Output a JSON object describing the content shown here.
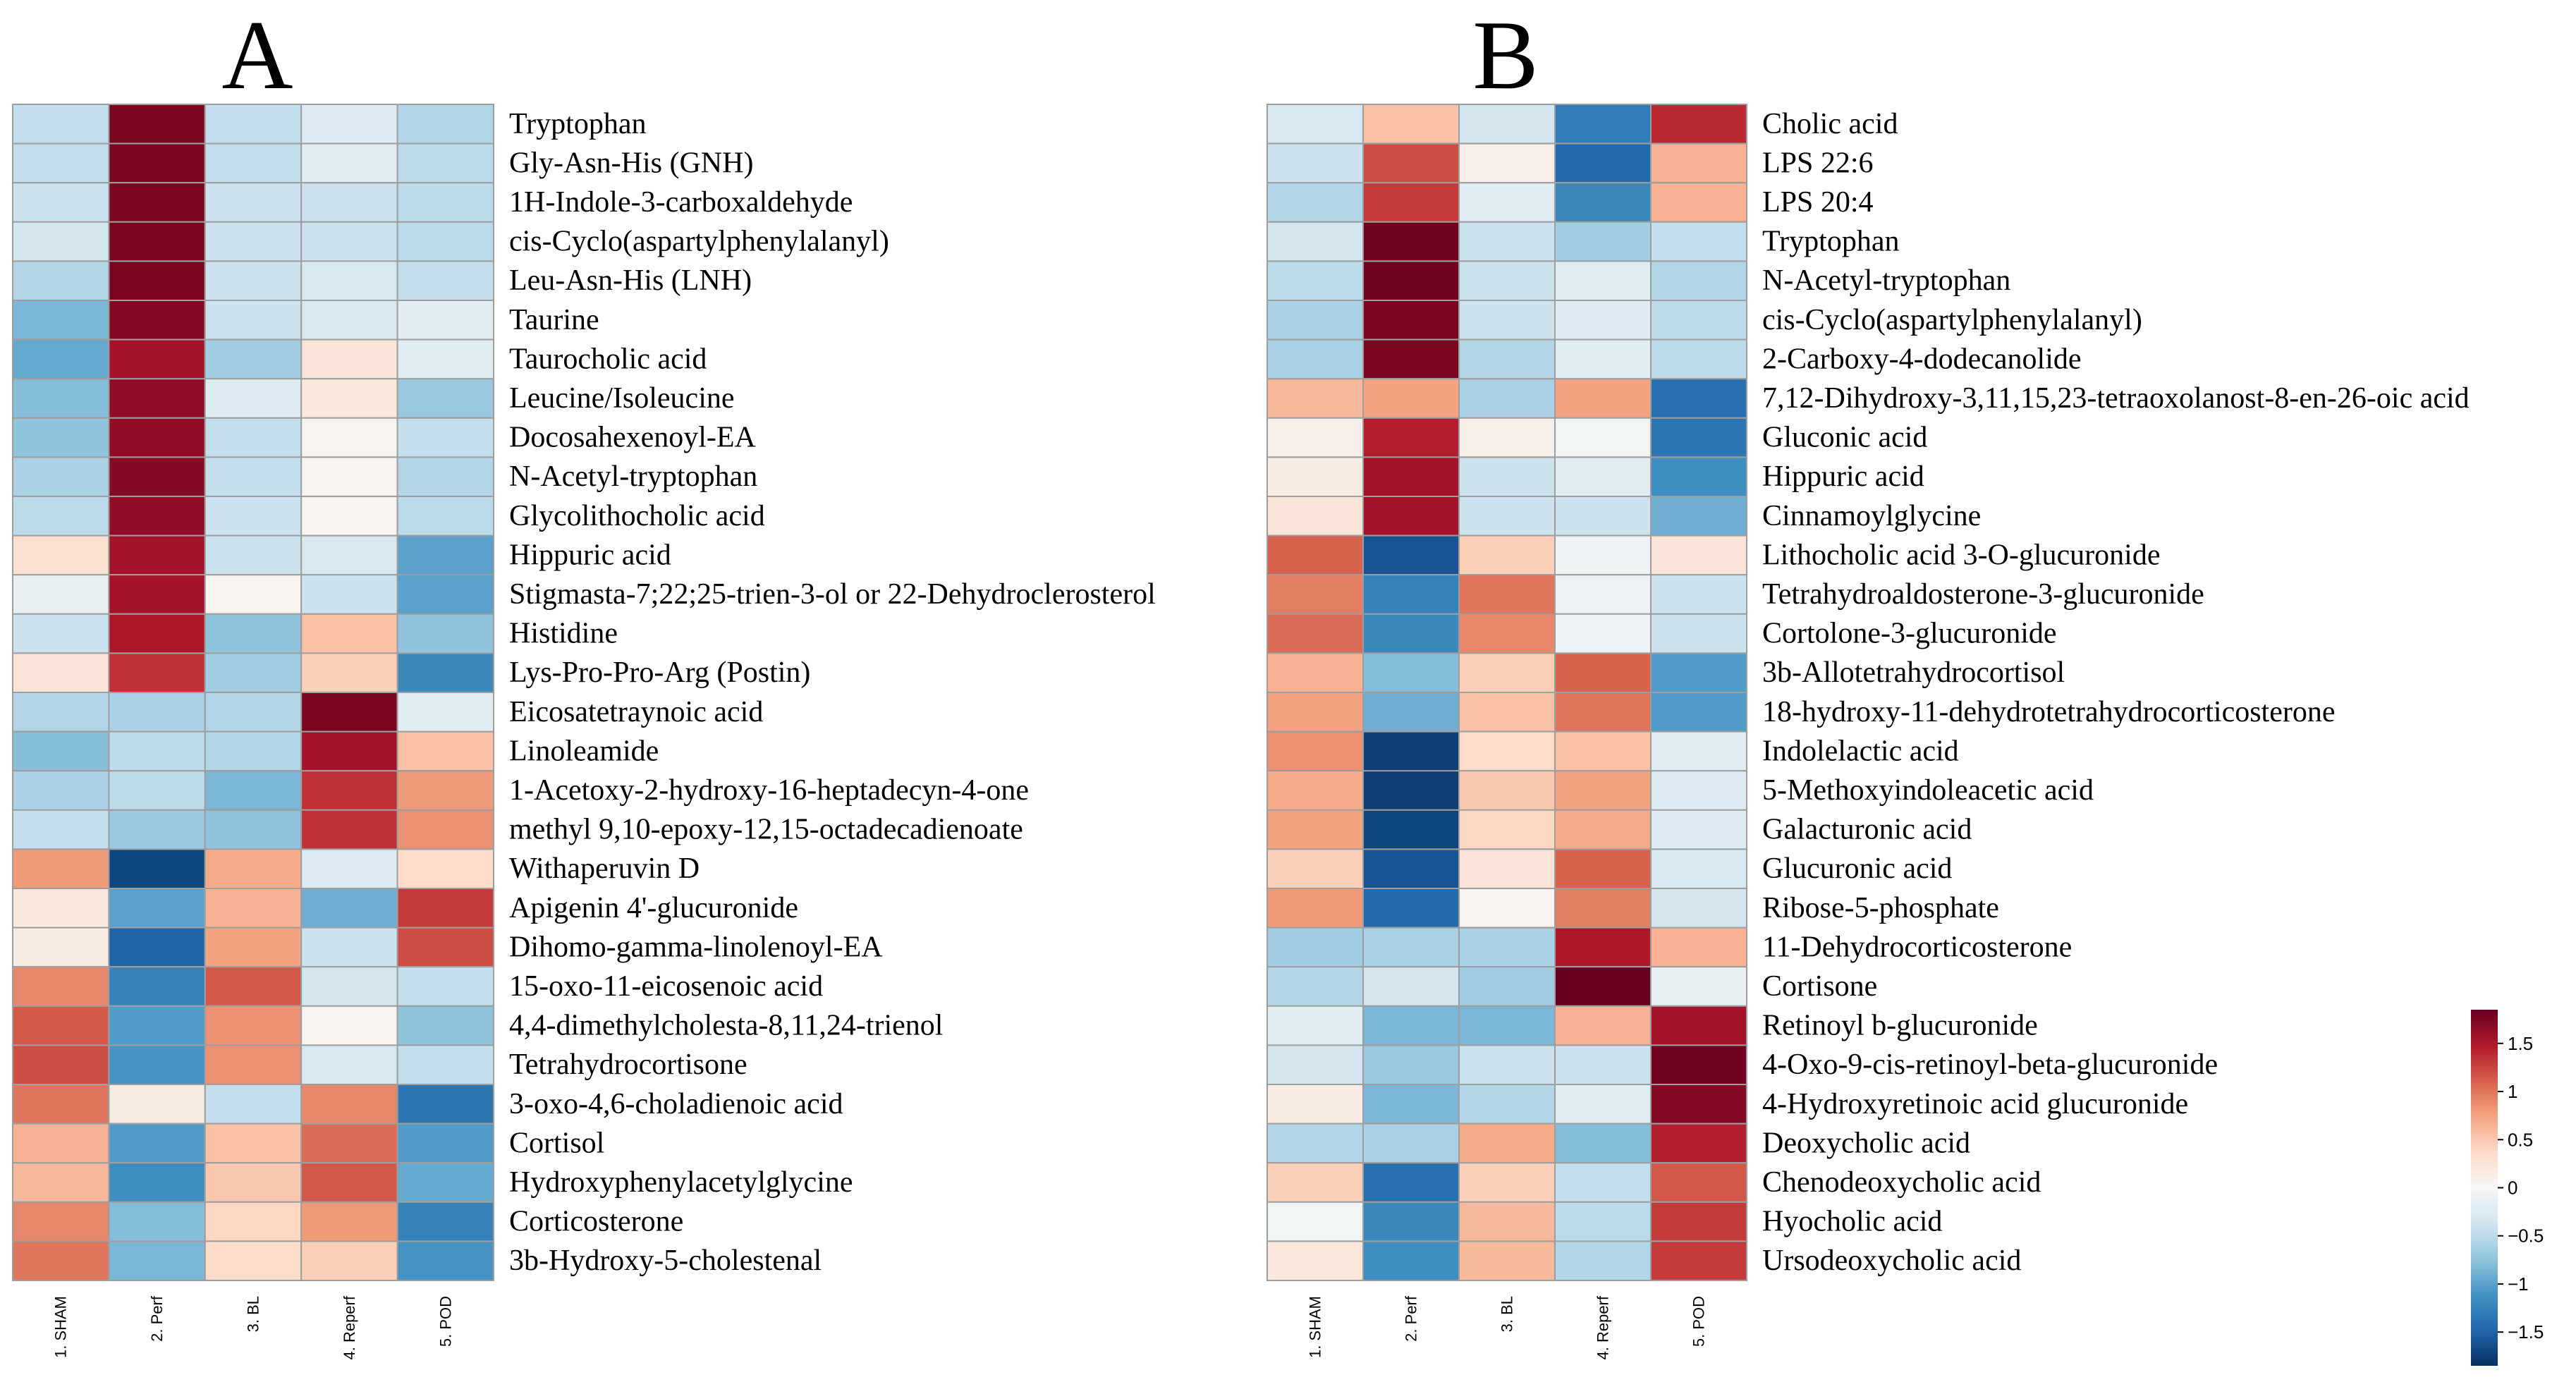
{
  "chart_data": [
    {
      "type": "heatmap",
      "panel": "A",
      "columns": [
        "1. SHAM",
        "2. Perf",
        "3. BL",
        "4. Reperf",
        "5. POD"
      ],
      "rows": [
        "Tryptophan",
        "Gly-Asn-His (GNH)",
        "1H-Indole-3-carboxaldehyde",
        "cis-Cyclo(aspartylphenylalanyl)",
        "Leu-Asn-His (LNH)",
        "Taurine",
        "Taurocholic acid",
        "Leucine/Isoleucine",
        "Docosahexenoyl-EA",
        "N-Acetyl-tryptophan",
        "Glycolithocholic acid",
        "Hippuric acid",
        "Stigmasta-7;22;25-trien-3-ol or 22-Dehydroclerosterol",
        "Histidine",
        "Lys-Pro-Pro-Arg (Postin)",
        "Eicosatetraynoic acid",
        "Linoleamide",
        "1-Acetoxy-2-hydroxy-16-heptadecyn-4-one",
        "methyl 9,10-epoxy-12,15-octadecadienoate",
        "Withaperuvin D",
        "Apigenin 4'-glucuronide",
        "Dihomo-gamma-linolenoyl-EA",
        "15-oxo-11-eicosenoic acid",
        "4,4-dimethylcholesta-8,11,24-trienol",
        "Tetrahydrocortisone",
        "3-oxo-4,6-choladienoic acid",
        "Cortisol",
        "Hydroxyphenylacetylglycine",
        "Corticosterone",
        "3b-Hydroxy-5-cholestenal"
      ],
      "values": [
        [
          -0.45,
          1.75,
          -0.45,
          -0.25,
          -0.55
        ],
        [
          -0.45,
          1.75,
          -0.45,
          -0.2,
          -0.5
        ],
        [
          -0.4,
          1.75,
          -0.4,
          -0.4,
          -0.5
        ],
        [
          -0.35,
          1.75,
          -0.4,
          -0.4,
          -0.5
        ],
        [
          -0.55,
          1.75,
          -0.4,
          -0.3,
          -0.45
        ],
        [
          -0.85,
          1.7,
          -0.4,
          -0.3,
          -0.2
        ],
        [
          -0.95,
          1.55,
          -0.65,
          0.25,
          -0.2
        ],
        [
          -0.8,
          1.65,
          -0.25,
          0.2,
          -0.7
        ],
        [
          -0.75,
          1.65,
          -0.45,
          0.05,
          -0.45
        ],
        [
          -0.6,
          1.7,
          -0.45,
          0.05,
          -0.55
        ],
        [
          -0.5,
          1.65,
          -0.4,
          0.05,
          -0.5
        ],
        [
          0.3,
          1.55,
          -0.4,
          -0.3,
          -1.0
        ],
        [
          -0.15,
          1.55,
          0.05,
          -0.4,
          -1.0
        ],
        [
          -0.4,
          1.5,
          -0.75,
          0.55,
          -0.75
        ],
        [
          0.25,
          1.35,
          -0.65,
          0.45,
          -1.2
        ],
        [
          -0.55,
          -0.6,
          -0.55,
          1.75,
          -0.2
        ],
        [
          -0.8,
          -0.5,
          -0.55,
          1.55,
          0.55
        ],
        [
          -0.6,
          -0.5,
          -0.85,
          1.35,
          0.8
        ],
        [
          -0.45,
          -0.7,
          -0.75,
          1.35,
          0.85
        ],
        [
          0.8,
          -1.7,
          0.7,
          -0.25,
          0.35
        ],
        [
          0.2,
          -1.0,
          0.65,
          -0.9,
          1.3
        ],
        [
          0.15,
          -1.5,
          0.75,
          -0.4,
          1.2
        ],
        [
          0.9,
          -1.25,
          1.15,
          -0.35,
          -0.45
        ],
        [
          1.15,
          -1.05,
          0.85,
          0.05,
          -0.75
        ],
        [
          1.2,
          -1.1,
          0.85,
          -0.3,
          -0.45
        ],
        [
          1.0,
          0.15,
          -0.45,
          0.9,
          -1.35
        ],
        [
          0.65,
          -1.05,
          0.55,
          1.05,
          -1.05
        ],
        [
          0.6,
          -1.15,
          0.5,
          1.15,
          -0.95
        ],
        [
          0.9,
          -0.8,
          0.4,
          0.8,
          -1.25
        ],
        [
          1.0,
          -0.85,
          0.35,
          0.45,
          -1.1
        ]
      ]
    },
    {
      "type": "heatmap",
      "panel": "B",
      "columns": [
        "1. SHAM",
        "2. Perf",
        "3. BL",
        "4. Reperf",
        "5. POD"
      ],
      "rows": [
        "Cholic acid",
        "LPS 22:6",
        "LPS 20:4",
        "Tryptophan",
        "N-Acetyl-tryptophan",
        "cis-Cyclo(aspartylphenylalanyl)",
        "2-Carboxy-4-dodecanolide",
        "7,12-Dihydroxy-3,11,15,23-tetraoxolanost-8-en-26-oic acid",
        "Gluconic acid",
        "Hippuric acid",
        "Cinnamoylglycine",
        "Lithocholic acid 3-O-glucuronide",
        "Tetrahydroaldosterone-3-glucuronide",
        "Cortolone-3-glucuronide",
        "3b-Allotetrahydrocortisol",
        "18-hydroxy-11-dehydrotetrahydrocorticosterone",
        "Indolelactic acid",
        "5-Methoxyindoleacetic acid",
        "Galacturonic acid",
        "Glucuronic acid",
        "Ribose-5-phosphate",
        "11-Dehydrocorticosterone",
        "Cortisone",
        "Retinoyl b-glucuronide",
        "4-Oxo-9-cis-retinoyl-beta-glucuronide",
        "4-Hydroxyretinoic acid glucuronide",
        "Deoxycholic acid",
        "Chenodeoxycholic acid",
        "Hyocholic acid",
        "Ursodeoxycholic acid"
      ],
      "values": [
        [
          -0.3,
          0.55,
          -0.35,
          -1.3,
          1.4
        ],
        [
          -0.4,
          1.2,
          0.1,
          -1.45,
          0.65
        ],
        [
          -0.55,
          1.3,
          -0.2,
          -1.2,
          0.65
        ],
        [
          -0.35,
          1.8,
          -0.4,
          -0.65,
          -0.45
        ],
        [
          -0.5,
          1.8,
          -0.4,
          -0.2,
          -0.55
        ],
        [
          -0.6,
          1.75,
          -0.4,
          -0.25,
          -0.5
        ],
        [
          -0.6,
          1.75,
          -0.55,
          -0.2,
          -0.5
        ],
        [
          0.6,
          0.75,
          -0.6,
          0.75,
          -1.4
        ],
        [
          0.1,
          1.45,
          0.1,
          -0.05,
          -1.35
        ],
        [
          0.15,
          1.55,
          -0.4,
          -0.2,
          -1.15
        ],
        [
          0.25,
          1.55,
          -0.4,
          -0.4,
          -0.9
        ],
        [
          1.1,
          -1.6,
          0.45,
          -0.1,
          0.25
        ],
        [
          0.95,
          -1.25,
          1.0,
          -0.1,
          -0.4
        ],
        [
          1.05,
          -1.2,
          0.9,
          -0.1,
          -0.4
        ],
        [
          0.65,
          -0.8,
          0.45,
          1.1,
          -1.05
        ],
        [
          0.75,
          -0.9,
          0.55,
          1.0,
          -1.05
        ],
        [
          0.85,
          -1.75,
          0.35,
          0.55,
          -0.2
        ],
        [
          0.7,
          -1.75,
          0.5,
          0.75,
          -0.25
        ],
        [
          0.75,
          -1.7,
          0.4,
          0.7,
          -0.25
        ],
        [
          0.45,
          -1.6,
          0.25,
          1.1,
          -0.3
        ],
        [
          0.8,
          -1.45,
          0.05,
          0.95,
          -0.35
        ],
        [
          -0.65,
          -0.6,
          -0.6,
          1.5,
          0.65
        ],
        [
          -0.55,
          -0.35,
          -0.65,
          1.85,
          -0.15
        ],
        [
          -0.2,
          -0.85,
          -0.85,
          0.65,
          1.55
        ],
        [
          -0.35,
          -0.7,
          -0.4,
          -0.4,
          1.8
        ],
        [
          0.15,
          -0.85,
          -0.55,
          -0.2,
          1.7
        ],
        [
          -0.55,
          -0.6,
          0.7,
          -0.8,
          1.45
        ],
        [
          0.45,
          -1.4,
          0.45,
          -0.45,
          1.15
        ],
        [
          -0.05,
          -1.2,
          0.6,
          -0.5,
          1.3
        ],
        [
          0.2,
          -1.15,
          0.6,
          -0.55,
          1.3
        ]
      ]
    }
  ],
  "colorbar": {
    "min": -1.85,
    "max": 1.85,
    "ticks": [
      {
        "value": 1.5,
        "label": "1.5"
      },
      {
        "value": 1,
        "label": "1"
      },
      {
        "value": 0.5,
        "label": "0.5"
      },
      {
        "value": 0,
        "label": "0"
      },
      {
        "value": -0.5,
        "label": "−0.5"
      },
      {
        "value": -1,
        "label": "−1"
      },
      {
        "value": -1.5,
        "label": "−1.5"
      }
    ],
    "colors": [
      "#053061",
      "#2166ac",
      "#4393c3",
      "#92c5de",
      "#d1e5f0",
      "#f7f7f7",
      "#fddbc7",
      "#f4a582",
      "#d6604d",
      "#b2182b",
      "#67001f"
    ]
  }
}
